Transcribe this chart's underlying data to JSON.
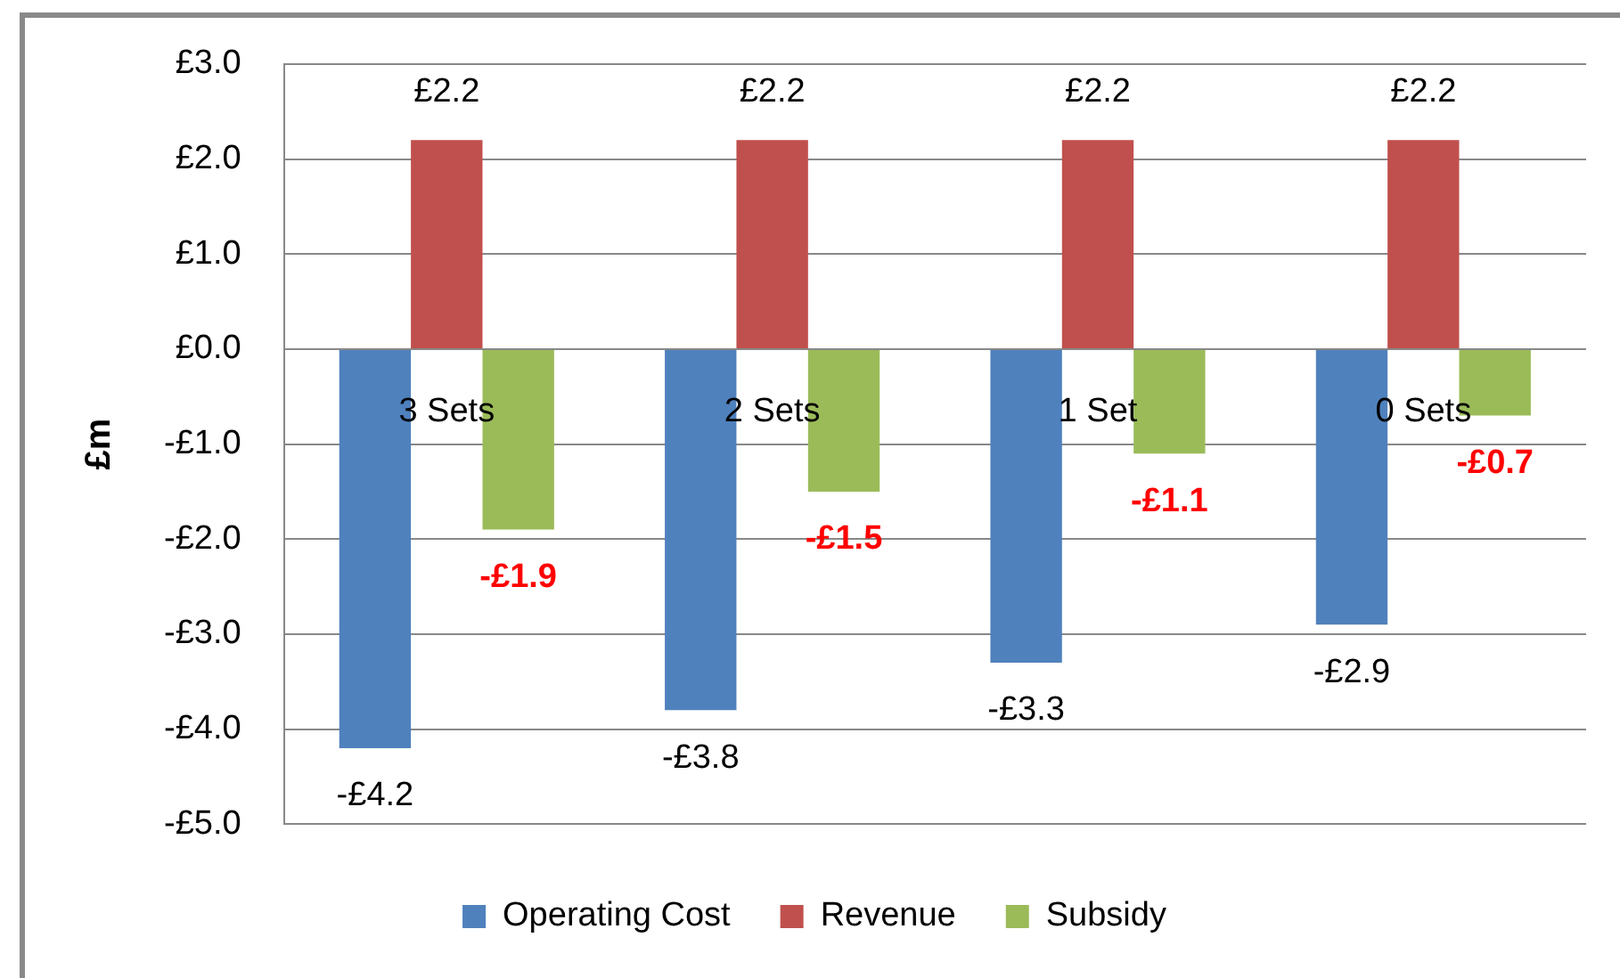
{
  "chart_data": {
    "type": "bar",
    "categories": [
      "3 Sets",
      "2 Sets",
      "1 Set",
      "0 Sets"
    ],
    "ylabel": "£m",
    "ylim": [
      -5,
      3
    ],
    "yticks": [
      {
        "value": 3,
        "label": "£3.0"
      },
      {
        "value": 2,
        "label": "£2.0"
      },
      {
        "value": 1,
        "label": "£1.0"
      },
      {
        "value": 0,
        "label": "£0.0"
      },
      {
        "value": -1,
        "label": "-£1.0"
      },
      {
        "value": -2,
        "label": "-£2.0"
      },
      {
        "value": -3,
        "label": "-£3.0"
      },
      {
        "value": -4,
        "label": "-£4.0"
      },
      {
        "value": -5,
        "label": "-£5.0"
      }
    ],
    "grid": "y",
    "legend": "bottom",
    "series": [
      {
        "name": "Operating Cost",
        "color": "#4f81bd",
        "values": [
          -4.2,
          -3.8,
          -3.3,
          -2.9
        ],
        "value_labels": [
          "-£4.2",
          "-£3.8",
          "-£3.3",
          "-£2.9"
        ]
      },
      {
        "name": "Revenue",
        "color": "#c0504d",
        "values": [
          2.2,
          2.2,
          2.2,
          2.2
        ],
        "value_labels": [
          "£2.2",
          "£2.2",
          "£2.2",
          "£2.2"
        ]
      },
      {
        "name": "Subsidy",
        "color": "#9bbb59",
        "values": [
          -1.9,
          -1.5,
          -1.1,
          -0.7
        ],
        "value_labels": [
          "-£1.9",
          "-£1.5",
          "-£1.1",
          "-£0.7"
        ]
      }
    ]
  }
}
